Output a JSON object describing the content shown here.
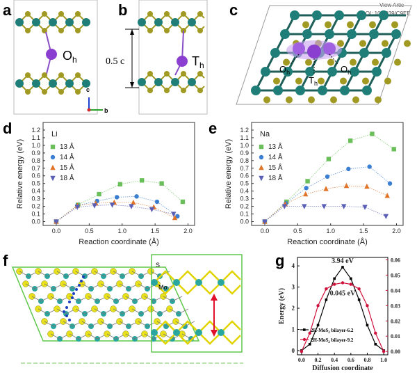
{
  "panels": {
    "a": {
      "label": "a",
      "site": "O",
      "site_sub": "h"
    },
    "b": {
      "label": "b",
      "site": "T",
      "site_sub": "h",
      "distance": "0.5 c",
      "axes": [
        "c",
        "b"
      ]
    },
    "c": {
      "label": "c",
      "watermark_1": "View Artic",
      "watermark_2": "DOI: 10.1039/C9EE",
      "sites": [
        "O",
        "T",
        "O"
      ],
      "site_subs": [
        "h",
        "h",
        "h"
      ]
    },
    "d": {
      "label": "d"
    },
    "e": {
      "label": "e"
    },
    "f": {
      "label": "f",
      "atom_labels": [
        "S",
        "Mo"
      ]
    },
    "g": {
      "label": "g"
    }
  },
  "colors": {
    "s13": "#6abf5a",
    "s14": "#3a7ed1",
    "s15": "#e0752a",
    "s18": "#5a5fb5",
    "mo_atom": "#1f7f78",
    "s_atom": "#a09a22",
    "g_black": "#000000",
    "g_red": "#d0103a"
  },
  "chart_data": [
    {
      "type": "line",
      "panel": "d",
      "title": "Li",
      "xlabel": "Reaction coordinate (Å)",
      "ylabel": "Relative energy (eV)",
      "xlim": [
        -0.2,
        2.1
      ],
      "ylim": [
        -0.05,
        1.3
      ],
      "xticks": [
        "0.0",
        "0.5",
        "1.0",
        "1.5",
        "2.0"
      ],
      "yticks": [
        "0.0",
        "0.1",
        "0.2",
        "0.3",
        "0.4",
        "0.5",
        "0.6",
        "0.7",
        "0.8",
        "0.9",
        "1.0",
        "1.1",
        "1.2"
      ],
      "legend_position": "top-left",
      "series": [
        {
          "name": "13 Å",
          "marker": "square",
          "x": [
            0.0,
            0.33,
            0.65,
            0.97,
            1.3,
            1.6,
            1.92
          ],
          "y": [
            0.0,
            0.22,
            0.36,
            0.49,
            0.54,
            0.5,
            0.26
          ]
        },
        {
          "name": "14 Å",
          "marker": "circle",
          "x": [
            0.0,
            0.32,
            0.62,
            0.92,
            1.22,
            1.53,
            1.84
          ],
          "y": [
            0.0,
            0.21,
            0.27,
            0.32,
            0.33,
            0.26,
            0.07
          ]
        },
        {
          "name": "15 Å",
          "marker": "triangle-up",
          "x": [
            0.0,
            0.32,
            0.6,
            0.88,
            1.17,
            1.48,
            1.8
          ],
          "y": [
            0.0,
            0.21,
            0.24,
            0.25,
            0.25,
            0.19,
            0.05
          ]
        },
        {
          "name": "18 Å",
          "marker": "triangle-down",
          "x": [
            0.0,
            0.32,
            0.58,
            0.85,
            1.14,
            1.45,
            1.78
          ],
          "y": [
            0.0,
            0.19,
            0.21,
            0.22,
            0.2,
            0.16,
            0.1
          ]
        }
      ]
    },
    {
      "type": "line",
      "panel": "e",
      "title": "Na",
      "xlabel": "Reaction coordinate (Å)",
      "ylabel": "Relative energy (eV)",
      "xlim": [
        -0.2,
        2.1
      ],
      "ylim": [
        -0.05,
        1.3
      ],
      "xticks": [
        "0.0",
        "0.5",
        "1.0",
        "1.5",
        "2.0"
      ],
      "yticks": [
        "0.0",
        "0.1",
        "0.2",
        "0.3",
        "0.4",
        "0.5",
        "0.6",
        "0.7",
        "0.8",
        "0.9",
        "1.0",
        "1.1",
        "1.2"
      ],
      "legend_position": "top-left",
      "series": [
        {
          "name": "13 Å",
          "marker": "square",
          "x": [
            0.0,
            0.33,
            0.65,
            0.97,
            1.3,
            1.63,
            1.96
          ],
          "y": [
            0.0,
            0.26,
            0.53,
            0.82,
            1.06,
            1.15,
            0.95
          ]
        },
        {
          "name": "14 Å",
          "marker": "circle",
          "x": [
            0.0,
            0.32,
            0.63,
            0.95,
            1.27,
            1.59,
            1.9
          ],
          "y": [
            0.0,
            0.24,
            0.44,
            0.59,
            0.69,
            0.72,
            0.5
          ]
        },
        {
          "name": "15 Å",
          "marker": "triangle-up",
          "x": [
            0.0,
            0.31,
            0.62,
            0.93,
            1.24,
            1.55,
            1.86
          ],
          "y": [
            0.0,
            0.23,
            0.36,
            0.43,
            0.47,
            0.46,
            0.34
          ]
        },
        {
          "name": "18 Å",
          "marker": "triangle-down",
          "x": [
            0.0,
            0.3,
            0.6,
            0.9,
            1.2,
            1.52,
            1.84
          ],
          "y": [
            0.0,
            0.2,
            0.2,
            0.2,
            0.2,
            0.19,
            0.07
          ]
        }
      ]
    },
    {
      "type": "line",
      "panel": "g",
      "xlabel": "Diffusion coordinate",
      "ylabel": "Energy (eV)",
      "xlim": [
        -0.05,
        1.05
      ],
      "ylim_left": [
        -0.2,
        4.4
      ],
      "ylim_right": [
        -0.0022,
        0.0616
      ],
      "xticks": [
        "0.0",
        "0.2",
        "0.4",
        "0.6",
        "0.8",
        "1.0"
      ],
      "yticks_left": [
        "0",
        "1",
        "2",
        "3",
        "4"
      ],
      "yticks_right": [
        "0.00",
        "0.01",
        "0.02",
        "0.03",
        "0.04",
        "0.05",
        "0.06"
      ],
      "annotations": [
        "3.94 eV",
        "0.045 eV"
      ],
      "series": [
        {
          "name_main": "2H-MoS",
          "name_sub": "2",
          "name_tail": " bilayer-6.2",
          "axis": "left",
          "x": [
            0.0,
            0.1,
            0.2,
            0.3,
            0.4,
            0.5,
            0.6,
            0.7,
            0.8,
            0.9,
            1.0
          ],
          "y": [
            0.0,
            0.3,
            1.2,
            2.4,
            3.4,
            3.94,
            3.4,
            2.4,
            1.2,
            0.3,
            0.0
          ]
        },
        {
          "name_main": "2H-MoS",
          "name_sub": "2",
          "name_tail": " bilayer-9.2",
          "axis": "right",
          "x": [
            0.0,
            0.1,
            0.2,
            0.3,
            0.4,
            0.5,
            0.6,
            0.7,
            0.8,
            0.9,
            1.0
          ],
          "y": [
            0.0,
            0.012,
            0.03,
            0.041,
            0.044,
            0.045,
            0.044,
            0.041,
            0.03,
            0.012,
            0.0
          ]
        }
      ]
    }
  ]
}
